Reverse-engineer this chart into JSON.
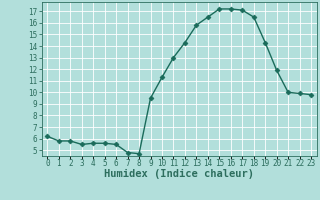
{
  "x": [
    0,
    1,
    2,
    3,
    4,
    5,
    6,
    7,
    8,
    9,
    10,
    11,
    12,
    13,
    14,
    15,
    16,
    17,
    18,
    19,
    20,
    21,
    22,
    23
  ],
  "y": [
    6.2,
    5.8,
    5.8,
    5.5,
    5.6,
    5.6,
    5.5,
    4.8,
    4.7,
    9.5,
    11.3,
    13.0,
    14.3,
    15.8,
    16.5,
    17.2,
    17.2,
    17.1,
    16.5,
    14.3,
    11.9,
    10.0,
    9.9,
    9.8
  ],
  "line_color": "#1a6b5a",
  "marker": "D",
  "marker_size": 2.5,
  "xlabel": "Humidex (Indice chaleur)",
  "bg_color": "#b2dfdb",
  "grid_color": "#ffffff",
  "xlim": [
    -0.5,
    23.5
  ],
  "ylim": [
    4.5,
    17.8
  ],
  "yticks": [
    5,
    6,
    7,
    8,
    9,
    10,
    11,
    12,
    13,
    14,
    15,
    16,
    17
  ],
  "xtick_labels": [
    "0",
    "1",
    "2",
    "3",
    "4",
    "5",
    "6",
    "7",
    "8",
    "9",
    "10",
    "11",
    "12",
    "13",
    "14",
    "15",
    "16",
    "17",
    "18",
    "19",
    "20",
    "21",
    "22",
    "23"
  ],
  "axis_color": "#2d6e5e",
  "tick_fontsize": 5.5,
  "xlabel_fontsize": 7.5,
  "linewidth": 1.0
}
